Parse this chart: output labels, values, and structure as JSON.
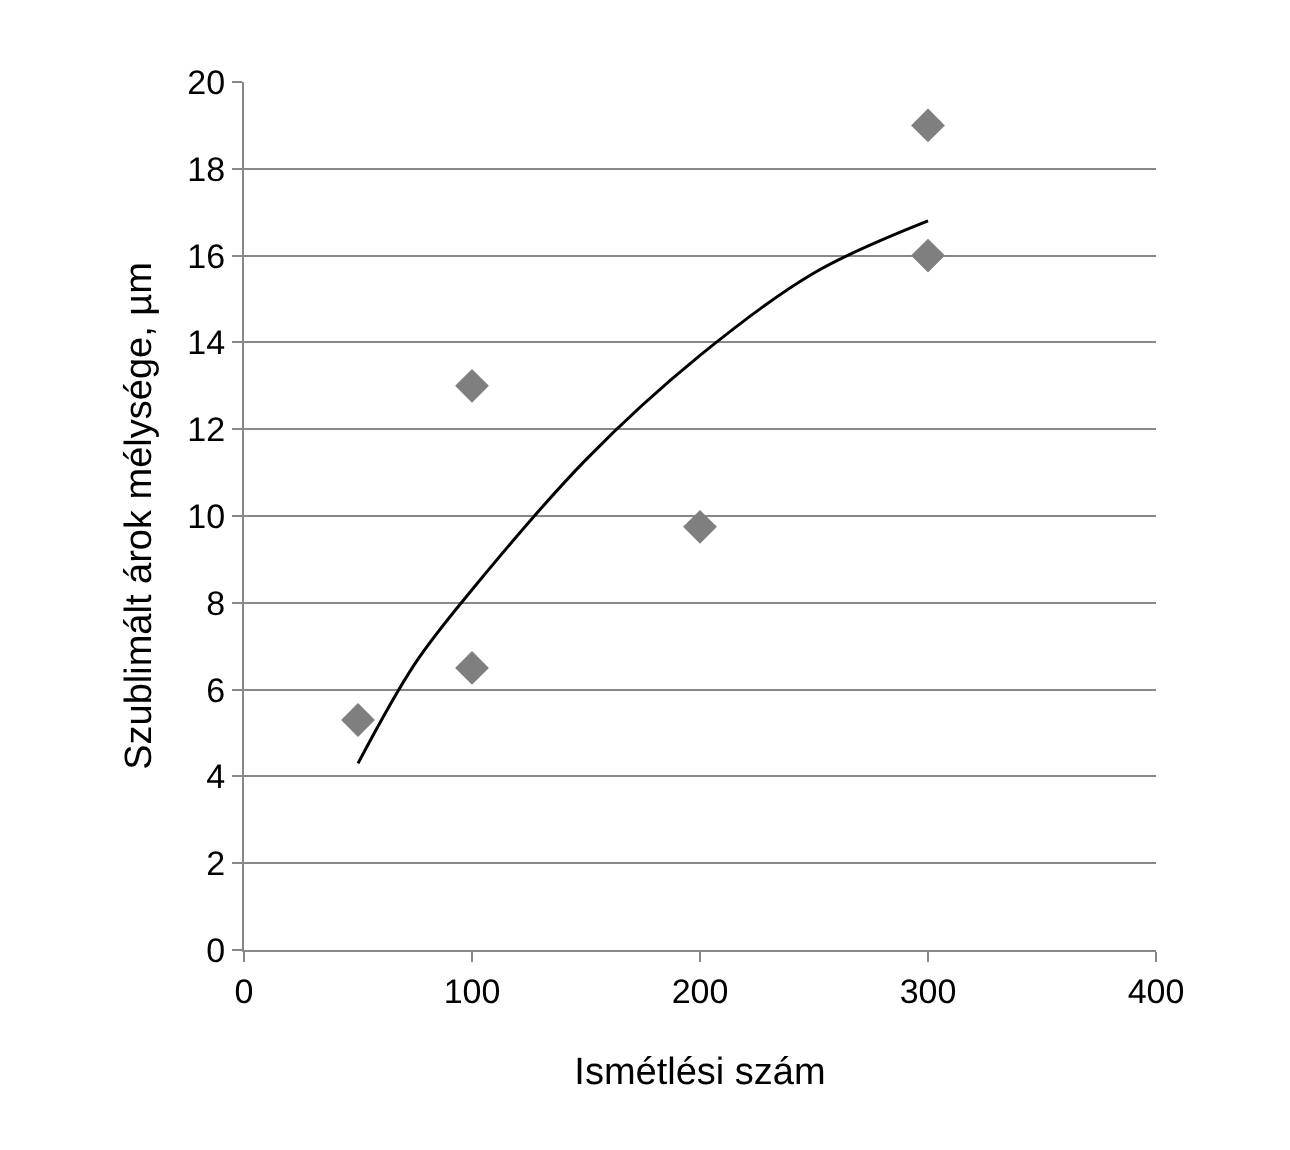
{
  "chart_data": {
    "type": "scatter",
    "xlabel": "Ismétlési szám",
    "ylabel": "Szublimált árok mélysége, µm",
    "x": [
      50,
      100,
      100,
      200,
      300,
      300
    ],
    "series": [
      {
        "type": "scatter",
        "color": "#7f7f7f",
        "marker": "diamond",
        "values": [
          5.3,
          13,
          6.5,
          9.75,
          19,
          16
        ]
      },
      {
        "type": "line",
        "color": "#000000",
        "marker": "none",
        "x": [
          50,
          75,
          100,
          150,
          200,
          250,
          300
        ],
        "values": [
          4.3,
          6.6,
          8.3,
          11.3,
          13.7,
          15.6,
          16.8
        ]
      }
    ],
    "xlim": [
      0,
      400
    ],
    "xticks": [
      0,
      100,
      200,
      300,
      400
    ],
    "ylim": [
      0,
      20
    ],
    "yticks": [
      0,
      2,
      4,
      6,
      8,
      10,
      12,
      14,
      16,
      18,
      20
    ],
    "grid": "y"
  }
}
